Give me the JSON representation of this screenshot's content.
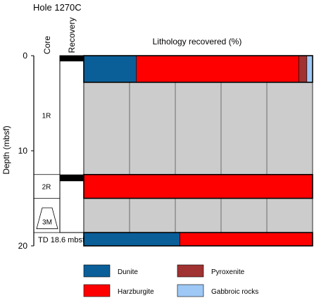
{
  "title": "Hole 1270C",
  "column_headers": {
    "core": "Core",
    "recovery": "Recovery",
    "lithology": "Lithology recovered (%)"
  },
  "depth_axis": {
    "label": "Depth (mbsf)",
    "ticks": [
      0,
      10,
      20
    ]
  },
  "td_label": "TD 18.6 mbsf",
  "lithologies": [
    {
      "key": "dunite",
      "name": "Dunite",
      "color": "#0a5f99"
    },
    {
      "key": "harzburgite",
      "name": "Harzburgite",
      "color": "#ff0000"
    },
    {
      "key": "pyroxenite",
      "name": "Pyroxenite",
      "color": "#a03232"
    },
    {
      "key": "gabbroic",
      "name": "Gabbroic rocks",
      "color": "#9ec8f5"
    }
  ],
  "chart_data": {
    "type": "bar",
    "orientation": "horizontal-stacked",
    "title": "Hole 1270C",
    "xlabel": "Lithology recovered (%)",
    "ylabel": "Depth (mbsf)",
    "ylim": [
      0,
      20
    ],
    "xlim": [
      0,
      100
    ],
    "cores": [
      {
        "name": "1R",
        "top": 0.0,
        "bottom": 12.5,
        "recovered_bottom": 0.6
      },
      {
        "name": "2R",
        "top": 12.5,
        "bottom": 15.0,
        "recovered_bottom": 13.2
      },
      {
        "name": "3M",
        "top": 16.0,
        "bottom": 18.6,
        "recovered_bottom": null
      }
    ],
    "lithology_intervals": [
      {
        "top": 0.0,
        "bottom": 2.8,
        "values": {
          "dunite": 23,
          "harzburgite": 71,
          "pyroxenite": 3.5,
          "gabbroic": 2.5
        }
      },
      {
        "top": 12.5,
        "bottom": 15.0,
        "values": {
          "dunite": 0,
          "harzburgite": 100,
          "pyroxenite": 0,
          "gabbroic": 0
        }
      },
      {
        "top": 18.6,
        "bottom": 20.0,
        "values": {
          "dunite": 42,
          "harzburgite": 58,
          "pyroxenite": 0,
          "gabbroic": 0
        }
      }
    ],
    "x_gridlines": [
      20,
      40,
      60,
      80
    ],
    "no_recovery_color": "#cccccc"
  }
}
